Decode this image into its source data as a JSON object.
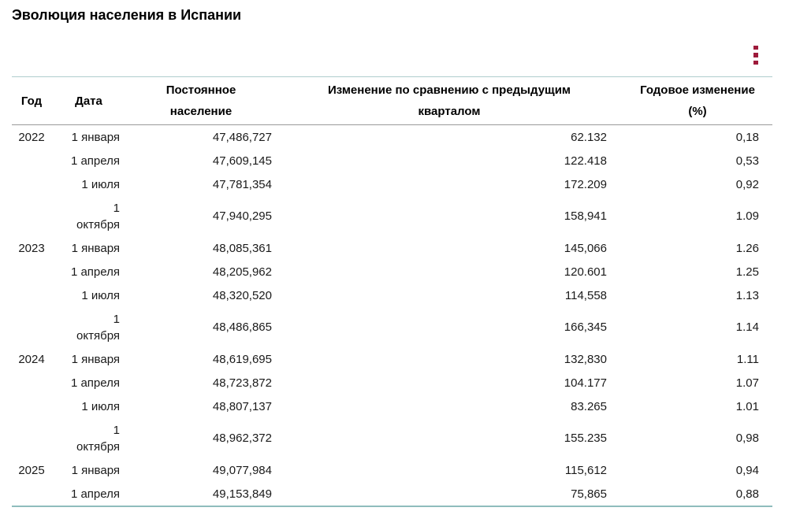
{
  "page": {
    "title": "Эволюция населения в Испании"
  },
  "toolbar": {
    "menu_icon": "kebab-menu-icon",
    "accent_color": "#9e1b3b"
  },
  "table": {
    "border_top_color": "#aecdcd",
    "border_bottom_color": "#8fbdbd",
    "columns": [
      "Год",
      "Дата",
      "Постоянное население",
      "Изменение по сравнению с предыдущим кварталом",
      "Годовое изменение (%)"
    ],
    "rows": [
      {
        "year": "2022",
        "date": "1 января",
        "population": "47,486,727",
        "quarterly_change": "62.132",
        "annual_change_pct": "0,18"
      },
      {
        "year": "",
        "date": "1 апреля",
        "population": "47,609,145",
        "quarterly_change": "122.418",
        "annual_change_pct": "0,53"
      },
      {
        "year": "",
        "date": "1 июля",
        "population": "47,781,354",
        "quarterly_change": "172.209",
        "annual_change_pct": "0,92"
      },
      {
        "year": "",
        "date": "1\nоктября",
        "population": "47,940,295",
        "quarterly_change": "158,941",
        "annual_change_pct": "1.09"
      },
      {
        "year": "2023",
        "date": "1 января",
        "population": "48,085,361",
        "quarterly_change": "145,066",
        "annual_change_pct": "1.26"
      },
      {
        "year": "",
        "date": "1 апреля",
        "population": "48,205,962",
        "quarterly_change": "120.601",
        "annual_change_pct": "1.25"
      },
      {
        "year": "",
        "date": "1 июля",
        "population": "48,320,520",
        "quarterly_change": "114,558",
        "annual_change_pct": "1.13"
      },
      {
        "year": "",
        "date": "1\nоктября",
        "population": "48,486,865",
        "quarterly_change": "166,345",
        "annual_change_pct": "1.14"
      },
      {
        "year": "2024",
        "date": "1 января",
        "population": "48,619,695",
        "quarterly_change": "132,830",
        "annual_change_pct": "1.11"
      },
      {
        "year": "",
        "date": "1 апреля",
        "population": "48,723,872",
        "quarterly_change": "104.177",
        "annual_change_pct": "1.07"
      },
      {
        "year": "",
        "date": "1 июля",
        "population": "48,807,137",
        "quarterly_change": "83.265",
        "annual_change_pct": "1.01"
      },
      {
        "year": "",
        "date": "1\nоктября",
        "population": "48,962,372",
        "quarterly_change": "155.235",
        "annual_change_pct": "0,98"
      },
      {
        "year": "2025",
        "date": "1 января",
        "population": "49,077,984",
        "quarterly_change": "115,612",
        "annual_change_pct": "0,94"
      },
      {
        "year": "",
        "date": "1 апреля",
        "population": "49,153,849",
        "quarterly_change": "75,865",
        "annual_change_pct": "0,88"
      }
    ]
  }
}
